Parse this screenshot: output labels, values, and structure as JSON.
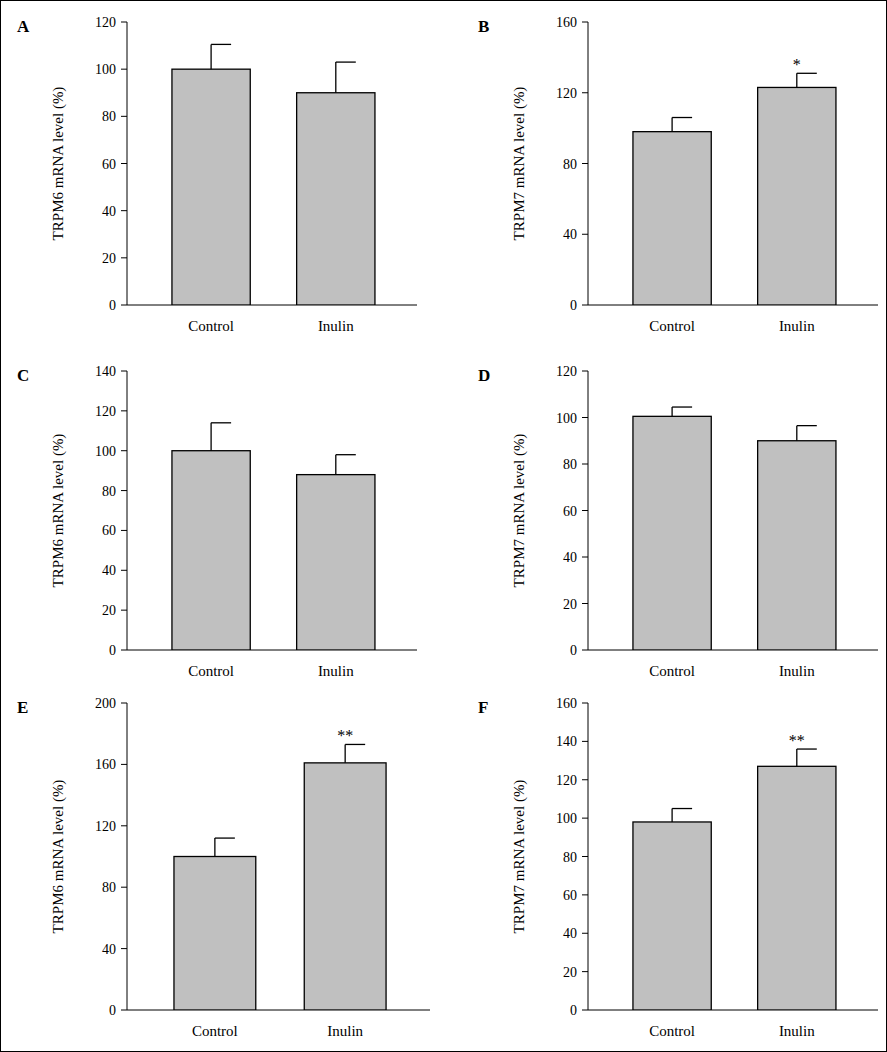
{
  "chart_data": [
    {
      "type": "bar",
      "title": "A",
      "y_label": "TRPM6 mRNA level (%)",
      "categories": [
        "Control",
        "Inulin"
      ],
      "values": [
        100,
        90
      ],
      "errors": [
        10.5,
        13
      ],
      "color": "#c0c0c0",
      "ylim": [
        0,
        120
      ],
      "yticks": [
        0,
        20,
        40,
        60,
        80,
        100,
        120
      ]
    },
    {
      "type": "bar",
      "title": "B",
      "y_label": "TRPM7 mRNA level (%)",
      "categories": [
        "Control",
        "Inulin"
      ],
      "values": [
        98,
        123
      ],
      "errors": [
        8,
        8
      ],
      "annotations": [
        null,
        "*"
      ],
      "color": "#c0c0c0",
      "ylim": [
        0,
        160
      ],
      "yticks": [
        0,
        40,
        80,
        120,
        160
      ]
    },
    {
      "type": "bar",
      "title": "C",
      "y_label": "TRPM6 mRNA level (%)",
      "categories": [
        "Control",
        "Inulin"
      ],
      "values": [
        100,
        88
      ],
      "errors": [
        14,
        10
      ],
      "color": "#c0c0c0",
      "ylim": [
        0,
        140
      ],
      "yticks": [
        0,
        20,
        40,
        60,
        80,
        100,
        120,
        140
      ]
    },
    {
      "type": "bar",
      "title": "D",
      "y_label": "TRPM7 mRNA level (%)",
      "categories": [
        "Control",
        "Inulin"
      ],
      "values": [
        100.5,
        90
      ],
      "errors": [
        4,
        6.5
      ],
      "color": "#c0c0c0",
      "ylim": [
        0,
        120
      ],
      "yticks": [
        0,
        20,
        40,
        60,
        80,
        100,
        120
      ]
    },
    {
      "type": "bar",
      "title": "E",
      "y_label": "TRPM6 mRNA level (%)",
      "categories": [
        "Control",
        "Inulin"
      ],
      "values": [
        100,
        161
      ],
      "errors": [
        12,
        12
      ],
      "annotations": [
        null,
        "**"
      ],
      "color": "#c0c0c0",
      "ylim": [
        0,
        200
      ],
      "yticks": [
        0,
        40,
        80,
        120,
        160,
        200
      ]
    },
    {
      "type": "bar",
      "title": "F",
      "y_label": "TRPM7 mRNA level (%)",
      "categories": [
        "Control",
        "Inulin"
      ],
      "values": [
        98,
        127
      ],
      "errors": [
        7,
        9
      ],
      "annotations": [
        null,
        "**"
      ],
      "color": "#c0c0c0",
      "ylim": [
        0,
        160
      ],
      "yticks": [
        0,
        20,
        40,
        60,
        80,
        100,
        120,
        140,
        160
      ]
    }
  ]
}
